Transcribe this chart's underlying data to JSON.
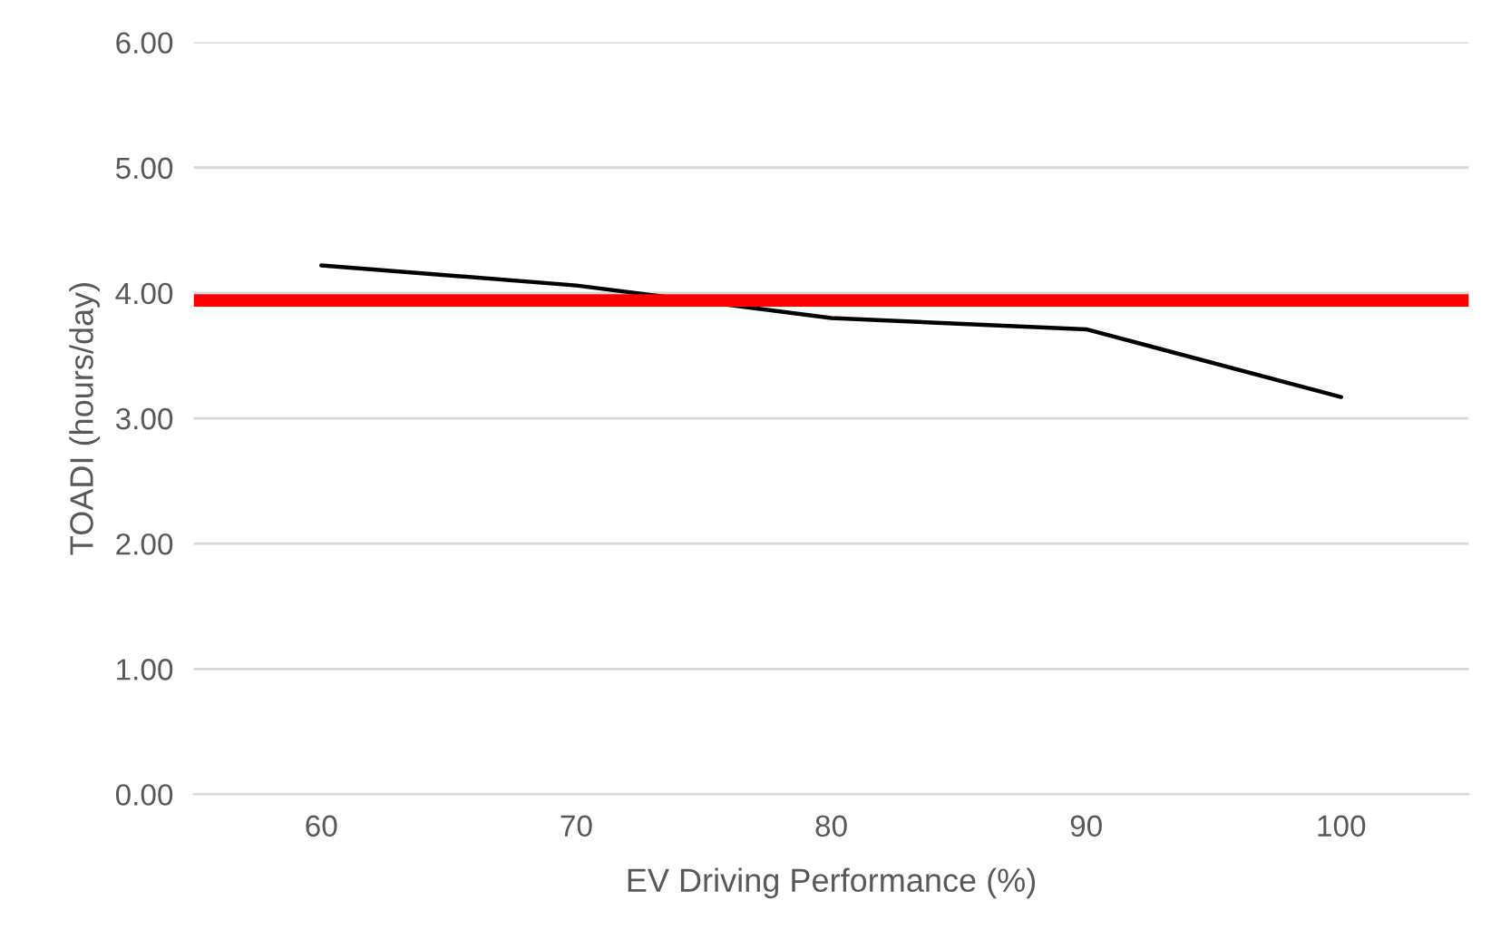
{
  "chart_data": {
    "type": "line",
    "xlabel": "EV Driving Performance (%)",
    "ylabel": "TOADI (hours/day)",
    "categories": [
      "60",
      "70",
      "80",
      "90",
      "100"
    ],
    "series": [
      {
        "color": "#000000",
        "values": [
          4.22,
          4.06,
          3.8,
          3.71,
          3.17
        ]
      }
    ],
    "ylim": [
      0,
      6
    ],
    "yticks": [
      {
        "value": 0,
        "label": "0.00"
      },
      {
        "value": 1,
        "label": "1.00"
      },
      {
        "value": 2,
        "label": "2.00"
      },
      {
        "value": 3,
        "label": "3.00"
      },
      {
        "value": 4,
        "label": "4.00"
      },
      {
        "value": 5,
        "label": "5.00"
      },
      {
        "value": 6,
        "label": "6.00"
      }
    ],
    "ref_lines": [
      {
        "axis": "y",
        "value": 3.94,
        "color": "#ff0000"
      }
    ],
    "grid": "y",
    "marker": "none",
    "line_style": "solid"
  }
}
